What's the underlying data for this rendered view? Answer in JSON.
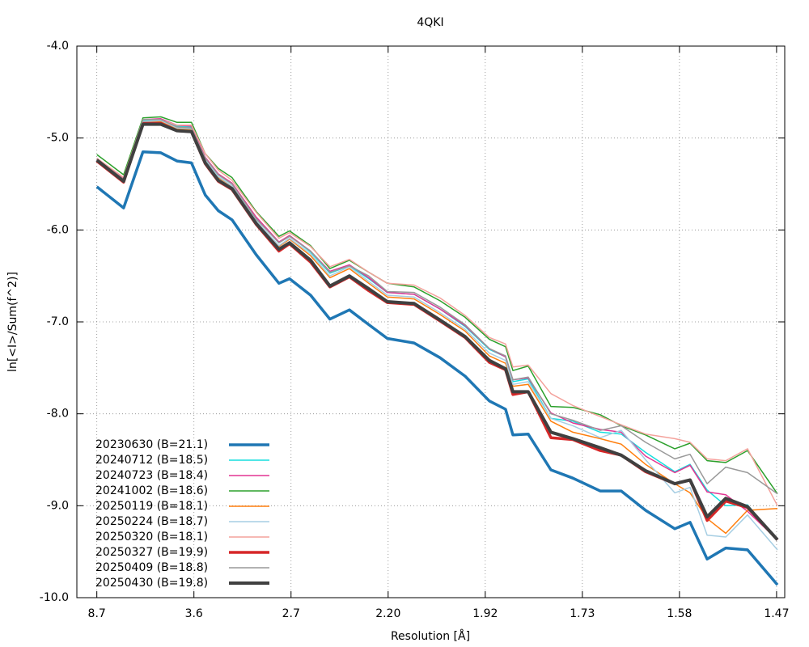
{
  "chart_data": {
    "type": "line",
    "title": "4QKI",
    "xlabel": "Resolution [Å]",
    "ylabel": "ln[<I>/Sum(f^2)]",
    "xlim": [
      0,
      0.468
    ],
    "ylim": [
      -10,
      -4
    ],
    "grid": true,
    "legend": "bottom left",
    "xticks": [
      {
        "value": 0.0132,
        "label": "8.7"
      },
      {
        "value": 0.0774,
        "label": "3.6"
      },
      {
        "value": 0.1416,
        "label": "2.7"
      },
      {
        "value": 0.2058,
        "label": "2.20"
      },
      {
        "value": 0.27,
        "label": "1.92"
      },
      {
        "value": 0.3342,
        "label": "1.73"
      },
      {
        "value": 0.3984,
        "label": "1.58"
      },
      {
        "value": 0.4626,
        "label": "1.47"
      }
    ],
    "yticks": [
      {
        "value": -4,
        "label": "-4.0"
      },
      {
        "value": -5,
        "label": "-5.0"
      },
      {
        "value": -6,
        "label": "-6.0"
      },
      {
        "value": -7,
        "label": "-7.0"
      },
      {
        "value": -8,
        "label": "-8.0"
      },
      {
        "value": -9,
        "label": "-9.0"
      },
      {
        "value": -10,
        "label": "-10.0"
      }
    ],
    "x": [
      0.0132,
      0.0309,
      0.0437,
      0.0555,
      0.0662,
      0.0758,
      0.0849,
      0.0935,
      0.1026,
      0.1186,
      0.1336,
      0.1406,
      0.1545,
      0.1673,
      0.1802,
      0.193,
      0.2053,
      0.223,
      0.2401,
      0.2567,
      0.2727,
      0.2834,
      0.2883,
      0.2984,
      0.3134,
      0.3279,
      0.346,
      0.3599,
      0.376,
      0.3953,
      0.4054,
      0.4167,
      0.429,
      0.4434,
      0.4632
    ],
    "series": [
      {
        "name": "20230630 (B=21.1)",
        "color": "#1f77b4",
        "width": 3.5,
        "values": [
          -5.53,
          -5.76,
          -5.15,
          -5.16,
          -5.25,
          -5.27,
          -5.62,
          -5.79,
          -5.89,
          -6.27,
          -6.58,
          -6.53,
          -6.71,
          -6.97,
          -6.87,
          -7.03,
          -7.18,
          -7.23,
          -7.39,
          -7.59,
          -7.86,
          -7.95,
          -8.23,
          -8.22,
          -8.61,
          -8.7,
          -8.84,
          -8.84,
          -9.05,
          -9.25,
          -9.18,
          -9.58,
          -9.46,
          -9.48,
          -9.86
        ]
      },
      {
        "name": "20240712 (B=18.5)",
        "color": "#17dede",
        "width": 1.5,
        "values": [
          -5.22,
          -5.45,
          -4.81,
          -4.81,
          -4.87,
          -4.88,
          -5.22,
          -5.4,
          -5.5,
          -5.87,
          -6.14,
          -6.06,
          -6.24,
          -6.47,
          -6.39,
          -6.53,
          -6.68,
          -6.7,
          -6.86,
          -7.05,
          -7.3,
          -7.38,
          -7.65,
          -7.62,
          -8.05,
          -8.08,
          -8.2,
          -8.22,
          -8.42,
          -8.63,
          -8.55,
          -8.83,
          -9.0,
          -8.99,
          -9.37
        ]
      },
      {
        "name": "20240723 (B=18.4)",
        "color": "#e33593",
        "width": 1.5,
        "values": [
          -5.22,
          -5.44,
          -4.8,
          -4.79,
          -4.86,
          -4.87,
          -5.21,
          -5.39,
          -5.49,
          -5.86,
          -6.13,
          -6.06,
          -6.23,
          -6.45,
          -6.38,
          -6.52,
          -6.68,
          -6.7,
          -6.86,
          -7.04,
          -7.29,
          -7.38,
          -7.63,
          -7.61,
          -7.99,
          -8.1,
          -8.17,
          -8.2,
          -8.46,
          -8.64,
          -8.56,
          -8.85,
          -8.88,
          -9.06,
          -9.37
        ]
      },
      {
        "name": "20241002 (B=18.6)",
        "color": "#2ca02c",
        "width": 1.5,
        "values": [
          -5.18,
          -5.4,
          -4.78,
          -4.77,
          -4.83,
          -4.83,
          -5.17,
          -5.33,
          -5.43,
          -5.8,
          -6.07,
          -6.01,
          -6.17,
          -6.42,
          -6.33,
          -6.46,
          -6.58,
          -6.62,
          -6.77,
          -6.95,
          -7.19,
          -7.27,
          -7.53,
          -7.48,
          -7.92,
          -7.93,
          -8.01,
          -8.13,
          -8.23,
          -8.38,
          -8.32,
          -8.51,
          -8.53,
          -8.4,
          -8.87
        ]
      },
      {
        "name": "20250119 (B=18.1)",
        "color": "#ff7f0e",
        "width": 1.5,
        "values": [
          -5.23,
          -5.46,
          -4.82,
          -4.82,
          -4.9,
          -4.91,
          -5.24,
          -5.43,
          -5.52,
          -5.9,
          -6.18,
          -6.1,
          -6.28,
          -6.52,
          -6.42,
          -6.58,
          -6.73,
          -6.75,
          -6.92,
          -7.1,
          -7.37,
          -7.45,
          -7.7,
          -7.68,
          -8.08,
          -8.2,
          -8.27,
          -8.33,
          -8.55,
          -8.76,
          -8.86,
          -9.14,
          -9.3,
          -9.05,
          -9.03
        ]
      },
      {
        "name": "20250224 (B=18.7)",
        "color": "#a6cee3",
        "width": 1.5,
        "values": [
          -5.23,
          -5.46,
          -4.82,
          -4.81,
          -4.89,
          -4.9,
          -5.24,
          -5.42,
          -5.52,
          -5.9,
          -6.17,
          -6.09,
          -6.26,
          -6.5,
          -6.4,
          -6.56,
          -6.71,
          -6.73,
          -6.9,
          -7.08,
          -7.34,
          -7.42,
          -7.68,
          -7.65,
          -8.05,
          -8.13,
          -8.26,
          -8.18,
          -8.5,
          -8.86,
          -8.8,
          -9.32,
          -9.34,
          -9.1,
          -9.48
        ]
      },
      {
        "name": "20250320 (B=18.1)",
        "color": "#f4a29c",
        "width": 1.5,
        "values": [
          -5.22,
          -5.43,
          -4.8,
          -4.8,
          -4.86,
          -4.86,
          -5.17,
          -5.35,
          -5.46,
          -5.81,
          -6.09,
          -6.03,
          -6.18,
          -6.4,
          -6.32,
          -6.46,
          -6.58,
          -6.6,
          -6.74,
          -6.93,
          -7.17,
          -7.24,
          -7.49,
          -7.47,
          -7.78,
          -7.91,
          -8.03,
          -8.12,
          -8.22,
          -8.27,
          -8.31,
          -8.49,
          -8.51,
          -8.38,
          -9.0
        ]
      },
      {
        "name": "20250327 (B=19.9)",
        "color": "#d62728",
        "width": 3.5,
        "values": [
          -5.25,
          -5.48,
          -4.84,
          -4.84,
          -4.92,
          -4.93,
          -5.28,
          -5.47,
          -5.56,
          -5.94,
          -6.23,
          -6.15,
          -6.35,
          -6.62,
          -6.51,
          -6.66,
          -6.79,
          -6.81,
          -6.99,
          -7.17,
          -7.44,
          -7.52,
          -7.79,
          -7.76,
          -8.26,
          -8.28,
          -8.4,
          -8.45,
          -8.63,
          -8.76,
          -8.72,
          -9.16,
          -8.95,
          -9.02,
          -9.37
        ]
      },
      {
        "name": "20250409 (B=18.8)",
        "color": "#999999",
        "width": 1.5,
        "values": [
          -5.23,
          -5.45,
          -4.8,
          -4.8,
          -4.88,
          -4.89,
          -5.22,
          -5.4,
          -5.5,
          -5.88,
          -6.14,
          -6.07,
          -6.23,
          -6.46,
          -6.39,
          -6.5,
          -6.67,
          -6.68,
          -6.84,
          -7.03,
          -7.29,
          -7.37,
          -7.63,
          -7.6,
          -8.0,
          -8.07,
          -8.18,
          -8.13,
          -8.31,
          -8.49,
          -8.44,
          -8.76,
          -8.58,
          -8.64,
          -8.87
        ]
      },
      {
        "name": "20250430 (B=19.8)",
        "color": "#404040",
        "width": 4,
        "values": [
          -5.24,
          -5.47,
          -4.85,
          -4.85,
          -4.92,
          -4.93,
          -5.27,
          -5.46,
          -5.55,
          -5.93,
          -6.21,
          -6.14,
          -6.33,
          -6.61,
          -6.5,
          -6.64,
          -6.78,
          -6.8,
          -6.98,
          -7.16,
          -7.42,
          -7.51,
          -7.76,
          -7.76,
          -8.2,
          -8.27,
          -8.37,
          -8.45,
          -8.62,
          -8.76,
          -8.72,
          -9.12,
          -8.92,
          -9.01,
          -9.37
        ]
      }
    ]
  }
}
